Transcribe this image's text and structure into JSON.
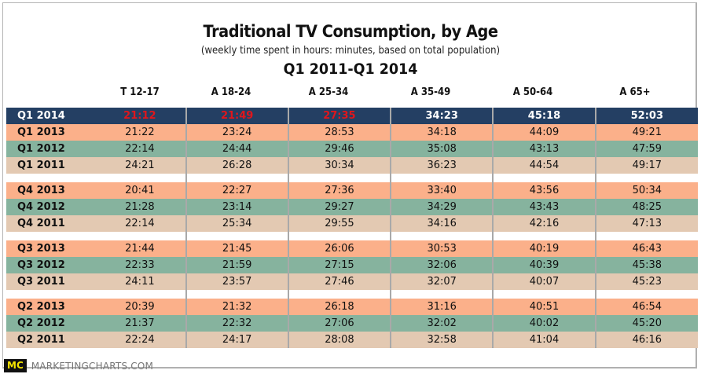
{
  "chart_data": {
    "type": "table",
    "title": "Traditional TV Consumption, by Age",
    "subtitle": "(weekly time spent in hours: minutes, based on total population)",
    "period": "Q1 2011-Q1 2014",
    "columns": [
      "T 12-17",
      "A 18-24",
      "A 25-34",
      "A 35-49",
      "A 50-64",
      "A 65+"
    ],
    "highlight_color": "#e0161c",
    "row_colors": {
      "header": "#243f63",
      "2013": "#fbb08a",
      "2012": "#86b39e",
      "2011": "#e3c9b2"
    },
    "rows": [
      {
        "label": "Q1 2014",
        "values": [
          "21:12",
          "21:49",
          "27:35",
          "34:23",
          "45:18",
          "52:03"
        ],
        "highlighted_values": [
          true,
          true,
          true,
          false,
          false,
          false
        ]
      },
      {
        "label": "Q1 2013",
        "values": [
          "21:22",
          "23:24",
          "28:53",
          "34:18",
          "44:09",
          "49:21"
        ]
      },
      {
        "label": "Q1 2012",
        "values": [
          "22:14",
          "24:44",
          "29:46",
          "35:08",
          "43:13",
          "47:59"
        ]
      },
      {
        "label": "Q1 2011",
        "values": [
          "24:21",
          "26:28",
          "30:34",
          "36:23",
          "44:54",
          "49:17"
        ]
      },
      {
        "label": "Q4 2013",
        "values": [
          "20:41",
          "22:27",
          "27:36",
          "33:40",
          "43:56",
          "50:34"
        ]
      },
      {
        "label": "Q4 2012",
        "values": [
          "21:28",
          "23:14",
          "29:27",
          "34:29",
          "43:43",
          "48:25"
        ]
      },
      {
        "label": "Q4 2011",
        "values": [
          "22:14",
          "25:34",
          "29:55",
          "34:16",
          "42:16",
          "47:13"
        ]
      },
      {
        "label": "Q3 2013",
        "values": [
          "21:44",
          "21:45",
          "26:06",
          "30:53",
          "40:19",
          "46:43"
        ]
      },
      {
        "label": "Q3 2012",
        "values": [
          "22:33",
          "21:59",
          "27:15",
          "32:06",
          "40:39",
          "45:38"
        ]
      },
      {
        "label": "Q3 2011",
        "values": [
          "24:11",
          "23:57",
          "27:46",
          "32:07",
          "40:07",
          "45:23"
        ]
      },
      {
        "label": "Q2 2013",
        "values": [
          "20:39",
          "21:32",
          "26:18",
          "31:16",
          "40:51",
          "46:54"
        ]
      },
      {
        "label": "Q2 2012",
        "values": [
          "21:37",
          "22:32",
          "27:06",
          "32:02",
          "40:02",
          "45:20"
        ]
      },
      {
        "label": "Q2 2011",
        "values": [
          "22:24",
          "24:17",
          "28:08",
          "32:58",
          "41:04",
          "46:16"
        ]
      }
    ]
  },
  "footer": {
    "logo": "MC",
    "site": "MARKETINGCHARTS.COM"
  }
}
